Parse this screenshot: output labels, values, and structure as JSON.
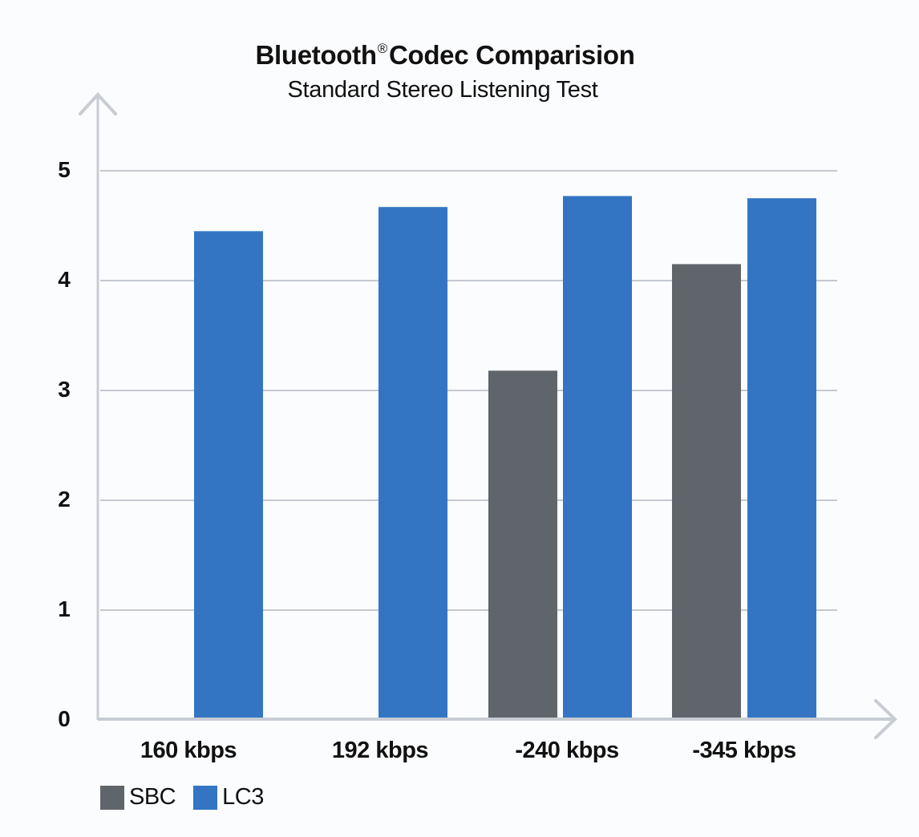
{
  "header": {
    "title_main": "Bluetooth",
    "title_mark": "®",
    "title_rest": "Codec Comparision",
    "subtitle": "Standard Stereo Listening Test"
  },
  "colors": {
    "sbc": "#60646b",
    "lc3": "#3375c3",
    "grid": "#c4c8cf",
    "axis": "#c8ccd3",
    "background": "#fbfcfe"
  },
  "chart_data": {
    "type": "bar",
    "title": "Bluetooth® Codec Comparision",
    "subtitle": "Standard Stereo Listening Test",
    "xlabel": "",
    "ylabel": "",
    "categories": [
      "160 kbps",
      "192 kbps",
      "-240 kbps",
      "-345 kbps"
    ],
    "series": [
      {
        "name": "SBC",
        "color": "#60646b",
        "values": [
          null,
          null,
          3.18,
          4.15
        ]
      },
      {
        "name": "LC3",
        "color": "#3375c3",
        "values": [
          4.45,
          4.67,
          4.77,
          4.75
        ]
      }
    ],
    "ylim": [
      0,
      5
    ],
    "yticks": [
      "0",
      "1",
      "2",
      "3",
      "4",
      "5"
    ],
    "grid": true,
    "legend_position": "bottom-left"
  },
  "legend": {
    "items": [
      {
        "label": "SBC"
      },
      {
        "label": "LC3"
      }
    ]
  }
}
